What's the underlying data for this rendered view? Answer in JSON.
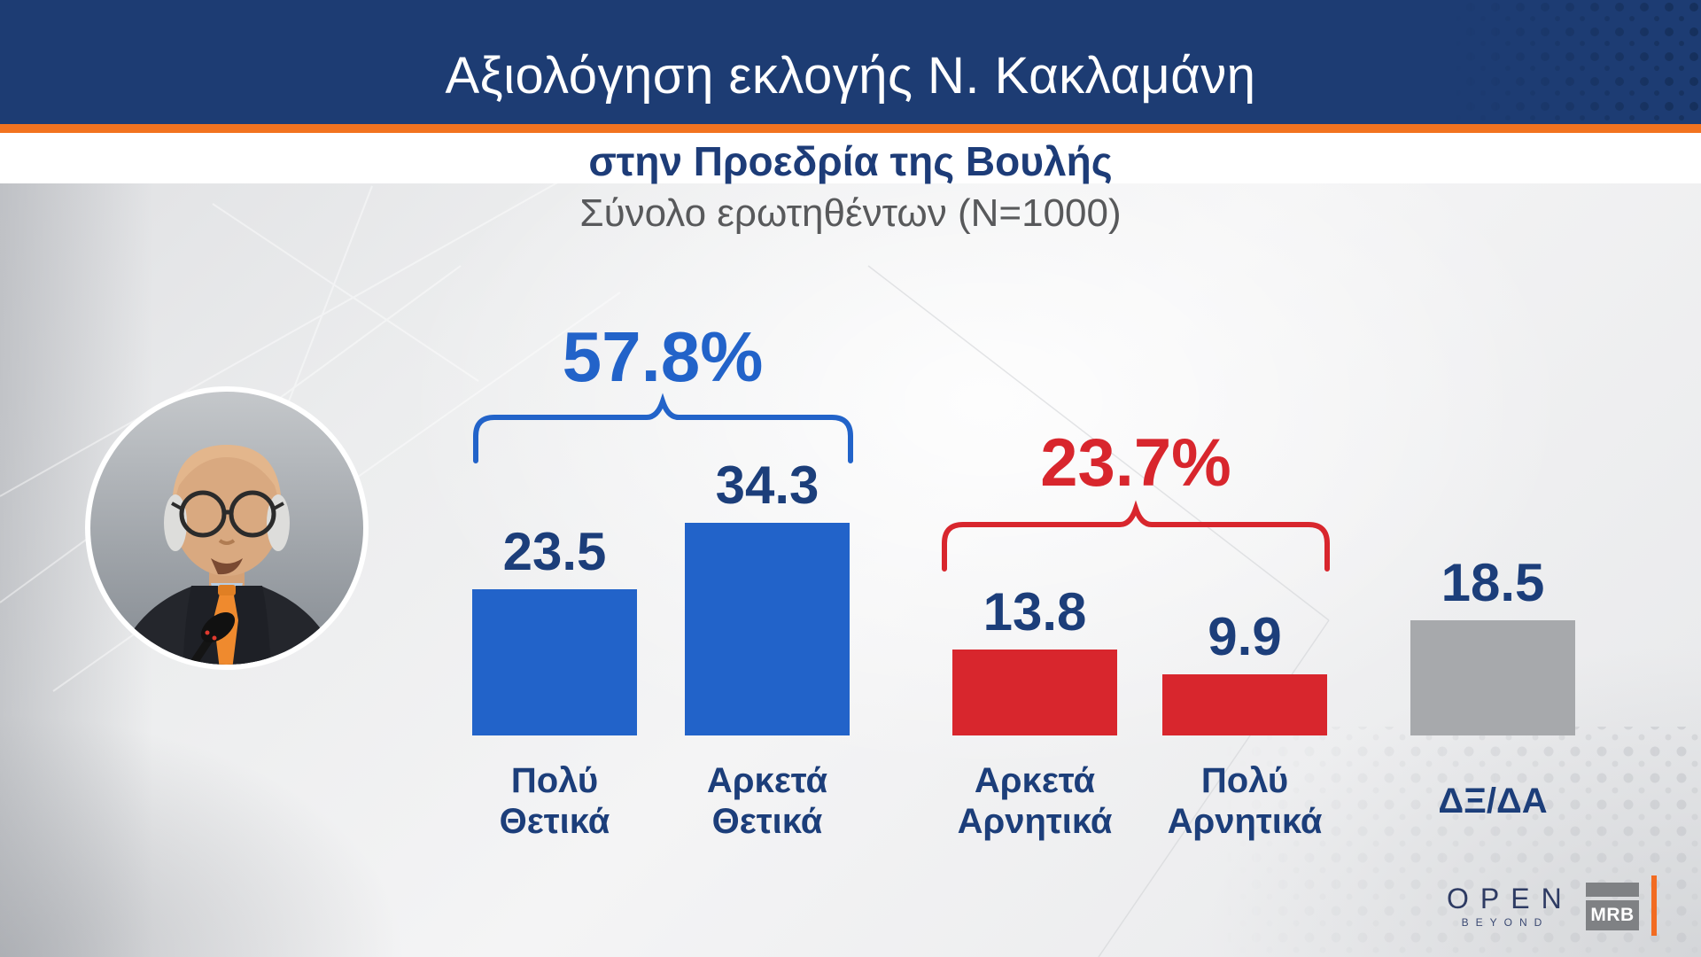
{
  "header": {
    "title": "Αξιολόγηση εκλογής Ν. Κακλαμάνη",
    "subtitle": "στην Προεδρία της Βουλής",
    "sample_note": "Σύνολο ερωτηθέντων (N=1000)"
  },
  "chart_data": {
    "type": "bar",
    "title": "Αξιολόγηση εκλογής Ν. Κακλαμάνη στην Προεδρία της Βουλής",
    "subtitle": "Σύνολο ερωτηθέντων (N=1000)",
    "categories": [
      "Πολύ Θετικά",
      "Αρκετά Θετικά",
      "Αρκετά Αρνητικά",
      "Πολύ Αρνητικά",
      "ΔΞ/ΔΑ"
    ],
    "values": [
      23.5,
      34.3,
      13.8,
      9.9,
      18.5
    ],
    "bar_colors": [
      "#2263c9",
      "#2263c9",
      "#d8262d",
      "#d8262d",
      "#a7a9ac"
    ],
    "value_label_color": "#1c3e7a",
    "groups": [
      {
        "label": "57.8%",
        "covers": [
          0,
          1
        ],
        "color": "#2263c9"
      },
      {
        "label": "23.7%",
        "covers": [
          2,
          3
        ],
        "color": "#d8262d"
      }
    ],
    "xlabel": "",
    "ylabel": "",
    "ylim": [
      0,
      40
    ],
    "grid": false,
    "legend": false
  },
  "branding": {
    "open_word": "OPEN",
    "open_tagline": "BEYOND",
    "mrb_word": "MRB"
  },
  "colors": {
    "header_navy": "#1d3c73",
    "accent_orange": "#f2731f",
    "positive_blue": "#2263c9",
    "negative_red": "#d8262d",
    "neutral_gray": "#a7a9ac",
    "text_navy": "#1c3e7a",
    "note_gray": "#58595b"
  }
}
